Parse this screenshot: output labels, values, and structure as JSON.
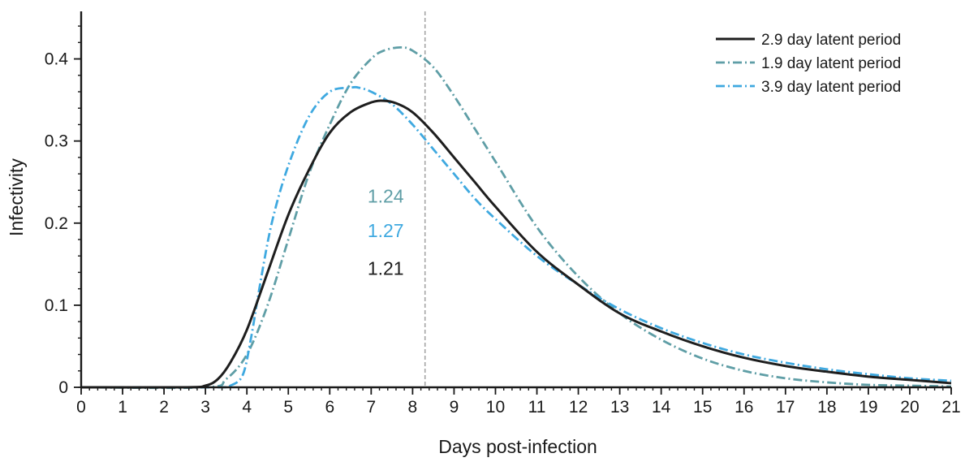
{
  "chart_data": {
    "type": "line",
    "xlabel": "Days post-infection",
    "ylabel": "Infectivity",
    "xlim": [
      0,
      21
    ],
    "ylim": [
      0,
      0.45
    ],
    "x_ticks": [
      0,
      1,
      2,
      3,
      4,
      5,
      6,
      7,
      8,
      9,
      10,
      11,
      12,
      13,
      14,
      15,
      16,
      17,
      18,
      19,
      20,
      21
    ],
    "x_tick_labels": [
      "0",
      "1",
      "2",
      "3",
      "4",
      "5",
      "6",
      "7",
      "8",
      "9",
      "10",
      "11",
      "12",
      "13",
      "14",
      "15",
      "16",
      "17",
      "18",
      "19",
      "20",
      "21"
    ],
    "y_ticks": [
      0,
      0.1,
      0.2,
      0.3,
      0.4
    ],
    "y_tick_labels": [
      "0",
      "0.1",
      "0.2",
      "0.3",
      "0.4"
    ],
    "grid": false,
    "legend_position": "top-right",
    "reference_line": {
      "x": 8.3,
      "color": "#a6a6a6",
      "style": "dashed"
    },
    "series": [
      {
        "name": "2.9 day latent period",
        "color": "#1e1e1e",
        "style": "solid",
        "x": [
          0,
          2.5,
          3,
          3.3,
          3.6,
          4,
          4.5,
          5,
          5.5,
          6,
          6.5,
          7,
          7.3,
          7.6,
          8,
          8.5,
          9,
          9.5,
          10,
          11,
          12,
          13,
          14,
          15,
          16,
          17,
          18,
          19,
          20,
          21
        ],
        "y": [
          0,
          0,
          0.002,
          0.01,
          0.03,
          0.07,
          0.14,
          0.21,
          0.265,
          0.31,
          0.335,
          0.347,
          0.349,
          0.346,
          0.335,
          0.31,
          0.28,
          0.25,
          0.22,
          0.165,
          0.125,
          0.09,
          0.068,
          0.05,
          0.036,
          0.026,
          0.019,
          0.013,
          0.009,
          0.005
        ]
      },
      {
        "name": "1.9 day latent period",
        "color": "#5f9ea6",
        "style": "dashdot",
        "x": [
          0,
          3,
          3.5,
          4,
          4.5,
          5,
          5.5,
          6,
          6.5,
          7,
          7.3,
          7.7,
          8,
          8.5,
          9,
          9.5,
          10,
          11,
          12,
          13,
          14,
          15,
          16,
          17,
          18,
          19,
          20,
          21
        ],
        "y": [
          0,
          0,
          0.01,
          0.04,
          0.1,
          0.18,
          0.26,
          0.32,
          0.37,
          0.4,
          0.41,
          0.414,
          0.41,
          0.39,
          0.355,
          0.315,
          0.275,
          0.195,
          0.135,
          0.09,
          0.058,
          0.035,
          0.02,
          0.011,
          0.006,
          0.003,
          0.002,
          0.001
        ]
      },
      {
        "name": "3.9 day latent period",
        "color": "#3fa9e0",
        "style": "dashdot",
        "x": [
          0,
          3.3,
          3.6,
          3.9,
          4.1,
          4.3,
          4.6,
          5,
          5.5,
          6,
          6.5,
          6.7,
          7,
          7.5,
          8,
          8.5,
          9,
          9.5,
          10,
          11,
          12,
          13,
          14,
          15,
          16,
          17,
          18,
          19,
          20,
          21
        ],
        "y": [
          0,
          0,
          0.002,
          0.015,
          0.06,
          0.12,
          0.2,
          0.27,
          0.33,
          0.36,
          0.365,
          0.365,
          0.36,
          0.345,
          0.32,
          0.29,
          0.26,
          0.23,
          0.205,
          0.16,
          0.125,
          0.095,
          0.072,
          0.054,
          0.04,
          0.03,
          0.022,
          0.016,
          0.011,
          0.008
        ]
      }
    ],
    "annotations": [
      {
        "text": "1.24",
        "color": "#5f9ea6",
        "x": 7.35,
        "y": 0.225
      },
      {
        "text": "1.27",
        "color": "#3fa9e0",
        "x": 7.35,
        "y": 0.183
      },
      {
        "text": "1.21",
        "color": "#1e1e1e",
        "x": 7.35,
        "y": 0.137
      }
    ]
  }
}
